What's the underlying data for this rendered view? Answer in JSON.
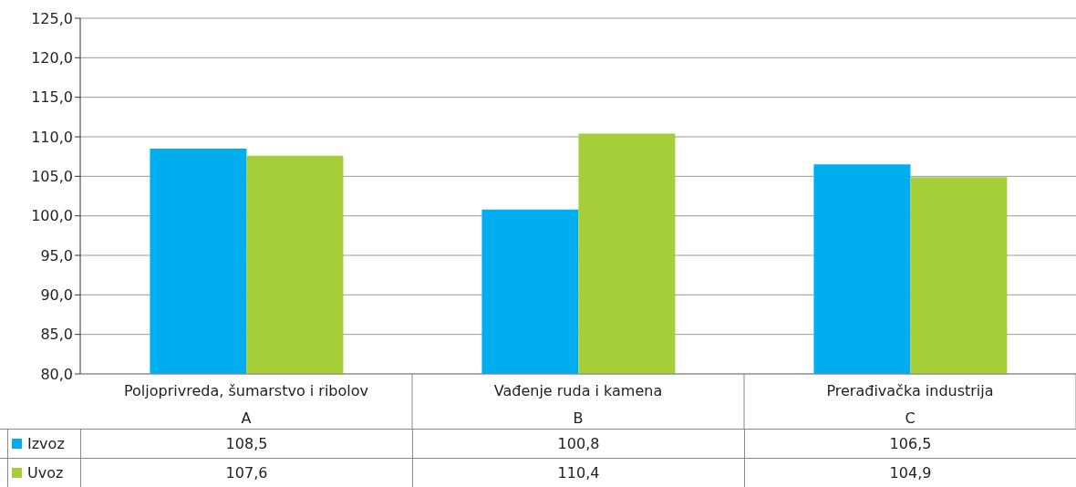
{
  "chart_data": {
    "type": "bar",
    "categories": [
      "Poljoprivreda, šumarstvo i ribolov\nA",
      "Vađenje ruda i kamena\nB",
      "Prerađivačka industrija\nC"
    ],
    "series": [
      {
        "name": "Izvoz",
        "color": "#00adef",
        "values": [
          108.5,
          100.8,
          106.5
        ],
        "value_labels": [
          "108,5",
          "100,8",
          "106,5"
        ]
      },
      {
        "name": "Uvoz",
        "color": "#a6ce39",
        "values": [
          107.6,
          110.4,
          104.9
        ],
        "value_labels": [
          "107,6",
          "110,4",
          "104,9"
        ]
      }
    ],
    "ylim": [
      80,
      125
    ],
    "yticks": [
      {
        "value": 80,
        "label": "80,0"
      },
      {
        "value": 85,
        "label": "85,0"
      },
      {
        "value": 90,
        "label": "90,0"
      },
      {
        "value": 95,
        "label": "95,0"
      },
      {
        "value": 100,
        "label": "100,0"
      },
      {
        "value": 105,
        "label": "105,0"
      },
      {
        "value": 110,
        "label": "110,0"
      },
      {
        "value": 115,
        "label": "115,0"
      },
      {
        "value": 120,
        "label": "120,0"
      },
      {
        "value": 125,
        "label": "125,0"
      }
    ],
    "grid": "y",
    "legend": "bottom left"
  }
}
